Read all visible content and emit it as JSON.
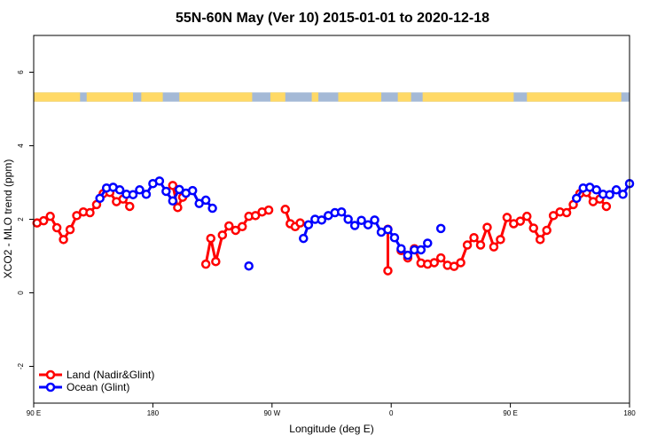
{
  "chart_data": {
    "type": "line",
    "title": "55N-60N May (Ver 10)   2015-01-01 to 2020-12-18",
    "xlabel": "Longitude (deg E)",
    "ylabel": "XCO2 - MLO trend (ppm)",
    "xlim": [
      90,
      450
    ],
    "ylim": [
      -3,
      7
    ],
    "x_ticks": [
      {
        "value": 90,
        "label": "90 E"
      },
      {
        "value": 162,
        "label": "180"
      },
      {
        "value": 234,
        "label": "90 W"
      },
      {
        "value": 306,
        "label": "0"
      },
      {
        "value": 378,
        "label": "90 E"
      },
      {
        "value": 450,
        "label": "180"
      }
    ],
    "y_ticks": [
      -2,
      0,
      2,
      4,
      6
    ],
    "grid": false,
    "legend_position": "bottom-left",
    "map_strip": {
      "y_bottom": 5.2,
      "y_top": 5.45,
      "land_color": "#ffd966",
      "ocean_color": "#a4b9d6"
    },
    "series": [
      {
        "name": "Land (Nadir&Glint)",
        "color": "#ff0000",
        "segments": [
          [
            [
              92,
              1.9
            ],
            [
              96,
              1.96
            ],
            [
              100,
              2.08
            ],
            [
              104,
              1.77
            ],
            [
              108,
              1.45
            ],
            [
              112,
              1.72
            ],
            [
              116,
              2.1
            ],
            [
              120,
              2.2
            ],
            [
              124,
              2.18
            ],
            [
              128,
              2.4
            ],
            [
              132,
              2.7
            ],
            [
              136,
              2.73
            ],
            [
              140,
              2.48
            ],
            [
              144,
              2.55
            ],
            [
              148,
              2.35
            ]
          ],
          [
            [
              174,
              2.92
            ],
            [
              177,
              2.32
            ],
            [
              180,
              2.6
            ]
          ],
          [
            [
              194,
              0.78
            ],
            [
              197,
              1.48
            ],
            [
              200,
              0.85
            ],
            [
              204,
              1.57
            ],
            [
              208,
              1.82
            ],
            [
              212,
              1.7
            ],
            [
              216,
              1.8
            ],
            [
              220,
              2.08
            ],
            [
              224,
              2.1
            ],
            [
              228,
              2.2
            ],
            [
              232,
              2.25
            ]
          ],
          [
            [
              242,
              2.27
            ],
            [
              245,
              1.88
            ],
            [
              248,
              1.8
            ],
            [
              251,
              1.9
            ]
          ],
          [
            [
              304,
              1.73
            ],
            [
              304,
              0.6
            ]
          ],
          [
            [
              312,
              1.15
            ],
            [
              316,
              0.95
            ],
            [
              320,
              1.2
            ],
            [
              324,
              0.81
            ],
            [
              328,
              0.78
            ],
            [
              332,
              0.82
            ],
            [
              336,
              0.95
            ],
            [
              340,
              0.75
            ],
            [
              344,
              0.72
            ],
            [
              348,
              0.82
            ],
            [
              352,
              1.3
            ],
            [
              356,
              1.5
            ],
            [
              360,
              1.3
            ],
            [
              364,
              1.78
            ],
            [
              368,
              1.25
            ],
            [
              372,
              1.45
            ],
            [
              376,
              2.05
            ],
            [
              380,
              1.88
            ],
            [
              384,
              1.95
            ],
            [
              388,
              2.08
            ],
            [
              392,
              1.76
            ],
            [
              396,
              1.45
            ],
            [
              400,
              1.7
            ],
            [
              404,
              2.1
            ],
            [
              408,
              2.2
            ],
            [
              412,
              2.18
            ],
            [
              416,
              2.4
            ],
            [
              420,
              2.7
            ],
            [
              424,
              2.73
            ],
            [
              428,
              2.48
            ],
            [
              432,
              2.55
            ],
            [
              436,
              2.35
            ]
          ]
        ]
      },
      {
        "name": "Ocean (Glint)",
        "color": "#0000ff",
        "segments": [
          [
            [
              130,
              2.57
            ],
            [
              134,
              2.85
            ],
            [
              138,
              2.87
            ],
            [
              142,
              2.8
            ],
            [
              146,
              2.68
            ],
            [
              150,
              2.67
            ],
            [
              154,
              2.8
            ],
            [
              158,
              2.68
            ],
            [
              162,
              2.97
            ],
            [
              166,
              3.04
            ],
            [
              170,
              2.76
            ],
            [
              174,
              2.5
            ],
            [
              178,
              2.81
            ],
            [
              182,
              2.71
            ],
            [
              186,
              2.78
            ],
            [
              190,
              2.43
            ],
            [
              194,
              2.52
            ],
            [
              198,
              2.3
            ]
          ],
          [
            [
              220,
              0.73
            ]
          ],
          [
            [
              253,
              1.48
            ],
            [
              256,
              1.85
            ],
            [
              260,
              2.0
            ],
            [
              264,
              1.98
            ],
            [
              268,
              2.1
            ],
            [
              272,
              2.18
            ],
            [
              276,
              2.2
            ],
            [
              280,
              2.0
            ],
            [
              284,
              1.83
            ],
            [
              288,
              1.97
            ],
            [
              292,
              1.85
            ],
            [
              296,
              1.98
            ],
            [
              300,
              1.65
            ],
            [
              304,
              1.72
            ],
            [
              308,
              1.5
            ],
            [
              312,
              1.2
            ],
            [
              316,
              1.02
            ],
            [
              320,
              1.17
            ],
            [
              324,
              1.17
            ],
            [
              328,
              1.35
            ]
          ],
          [
            [
              336,
              1.75
            ]
          ],
          [
            [
              418,
              2.57
            ],
            [
              422,
              2.85
            ],
            [
              426,
              2.87
            ],
            [
              430,
              2.8
            ],
            [
              434,
              2.68
            ],
            [
              438,
              2.67
            ],
            [
              442,
              2.8
            ],
            [
              446,
              2.68
            ],
            [
              450,
              2.97
            ]
          ]
        ]
      }
    ]
  }
}
